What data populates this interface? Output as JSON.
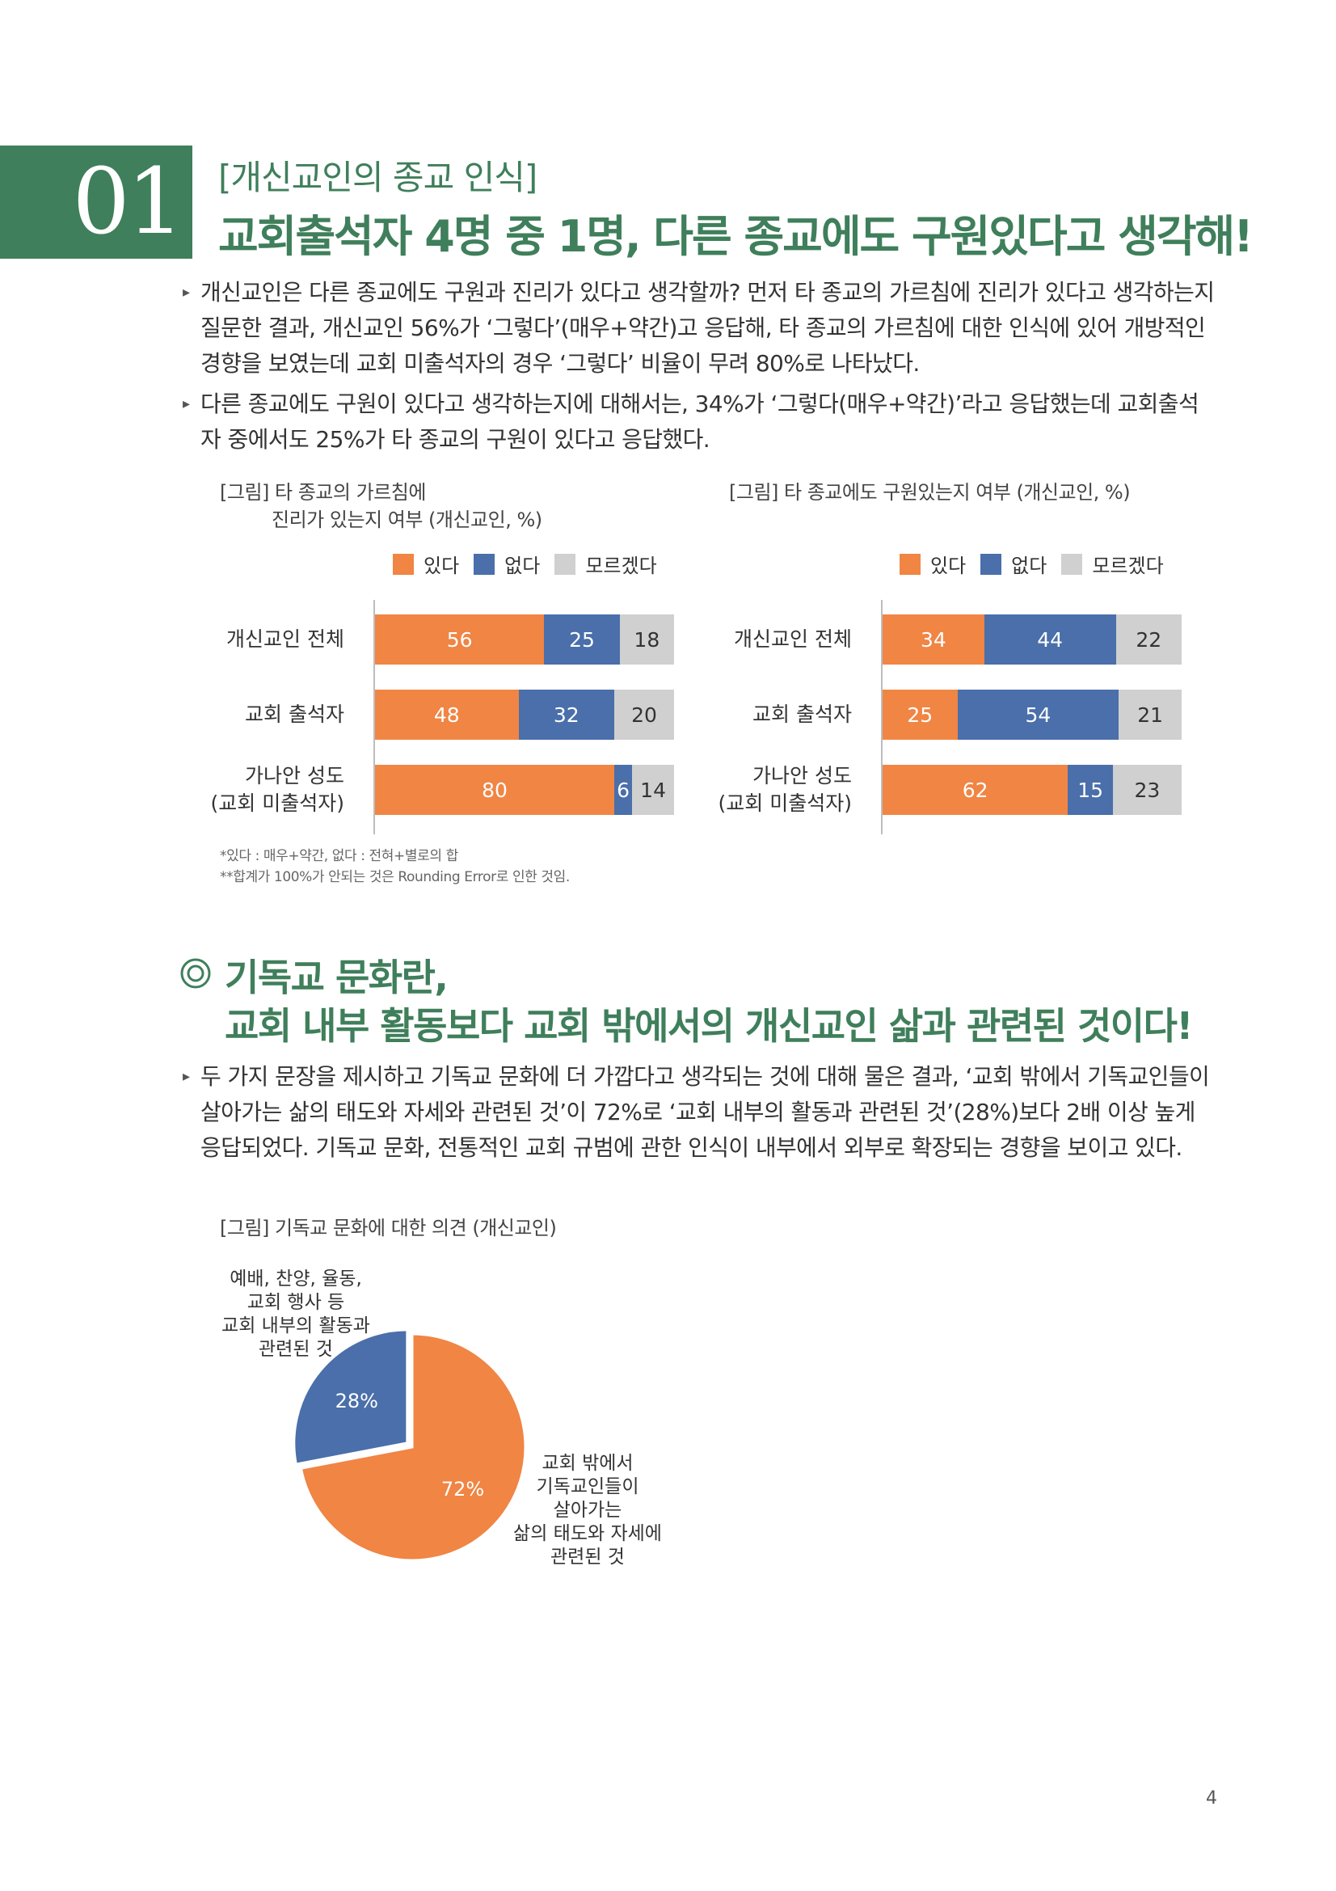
{
  "header": {
    "number": "01",
    "subtitle": "[개신교인의 종교 인식]",
    "title": "교회출석자 4명 중 1명, 다른 종교에도 구원있다고 생각해!"
  },
  "paragraphs": [
    "개신교인은 다른 종교에도 구원과 진리가 있다고 생각할까? 먼저 타 종교의 가르침에 진리가 있다고 생각하는지 질문한 결과, 개신교인 56%가 ‘그렇다’(매우+약간)고 응답해, 타 종교의 가르침에 대한 인식에 있어 개방적인 경향을 보였는데 교회 미출석자의 경우 ‘그렇다’ 비율이 무려 80%로 나타났다.",
    "다른 종교에도 구원이 있다고 생각하는지에 대해서는, 34%가 ‘그렇다(매우+약간)’라고 응답했는데 교회출석자 중에서도 25%가 타 종교의 구원이 있다고 응답했다."
  ],
  "colors": {
    "yes": "#f08544",
    "no": "#4a6faa",
    "dk": "#d0d0d0",
    "green": "#3f7f5b"
  },
  "legend": {
    "yes": "있다",
    "no": "없다",
    "dk": "모르겠다"
  },
  "chart_data": [
    {
      "type": "bar",
      "stacked": true,
      "orientation": "horizontal",
      "title_line1": "[그림] 타 종교의 가르침에",
      "title_line2": "진리가 있는지 여부 (개신교인, %)",
      "categories": [
        [
          "개신교인 전체"
        ],
        [
          "교회 출석자"
        ],
        [
          "가나안 성도",
          "(교회 미출석자)"
        ]
      ],
      "series": [
        {
          "name": "있다",
          "values": [
            56,
            48,
            80
          ]
        },
        {
          "name": "없다",
          "values": [
            25,
            32,
            6
          ]
        },
        {
          "name": "모르겠다",
          "values": [
            18,
            20,
            14
          ]
        }
      ],
      "legend_position": "top-right"
    },
    {
      "type": "bar",
      "stacked": true,
      "orientation": "horizontal",
      "title_line1": "[그림] 타 종교에도 구원있는지 여부 (개신교인, %)",
      "title_line2": "",
      "categories": [
        [
          "개신교인 전체"
        ],
        [
          "교회 출석자"
        ],
        [
          "가나안 성도",
          "(교회 미출석자)"
        ]
      ],
      "series": [
        {
          "name": "있다",
          "values": [
            34,
            25,
            62
          ]
        },
        {
          "name": "없다",
          "values": [
            44,
            54,
            15
          ]
        },
        {
          "name": "모르겠다",
          "values": [
            22,
            21,
            23
          ]
        }
      ],
      "legend_position": "top-right"
    },
    {
      "type": "pie",
      "title": "[그림] 기독교 문화에 대한 의견 (개신교인)",
      "slices": [
        {
          "label": "교회 밖에서 기독교인들이 살아가는 삶의 태도와 자세에 관련된 것",
          "value": 72,
          "display": "72%"
        },
        {
          "label": "예배, 찬양, 율동, 교회 행사 등 교회 내부의 활동과 관련된 것",
          "value": 28,
          "display": "28%"
        }
      ]
    }
  ],
  "notes": [
    "*있다 : 매우+약간, 없다 : 전혀+별로의 합",
    "**합계가 100%가 안되는 것은 Rounding Error로 인한 것임."
  ],
  "section2": {
    "title_line1": "기독교 문화란,",
    "title_line2": "교회 내부 활동보다 교회 밖에서의 개신교인 삶과 관련된 것이다!",
    "paragraph": "두 가지 문장을 제시하고 기독교 문화에 더 가깝다고 생각되는 것에 대해 물은 결과, ‘교회 밖에서 기독교인들이 살아가는 삶의 태도와 자세와 관련된 것’이 72%로 ‘교회 내부의 활동과 관련된 것’(28%)보다 2배 이상 높게 응답되었다. 기독교 문화, 전통적인 교회 규범에 관한 인식이 내부에서 외부로 확장되는 경향을 보이고 있다.",
    "pie_label_small": [
      "예배, 찬양, 율동,",
      "교회 행사 등",
      "교회 내부의 활동과",
      "관련된 것"
    ],
    "pie_label_large": [
      "교회 밖에서",
      "기독교인들이",
      "살아가는",
      "삶의 태도와 자세에",
      "관련된 것"
    ]
  },
  "page_number": "4"
}
